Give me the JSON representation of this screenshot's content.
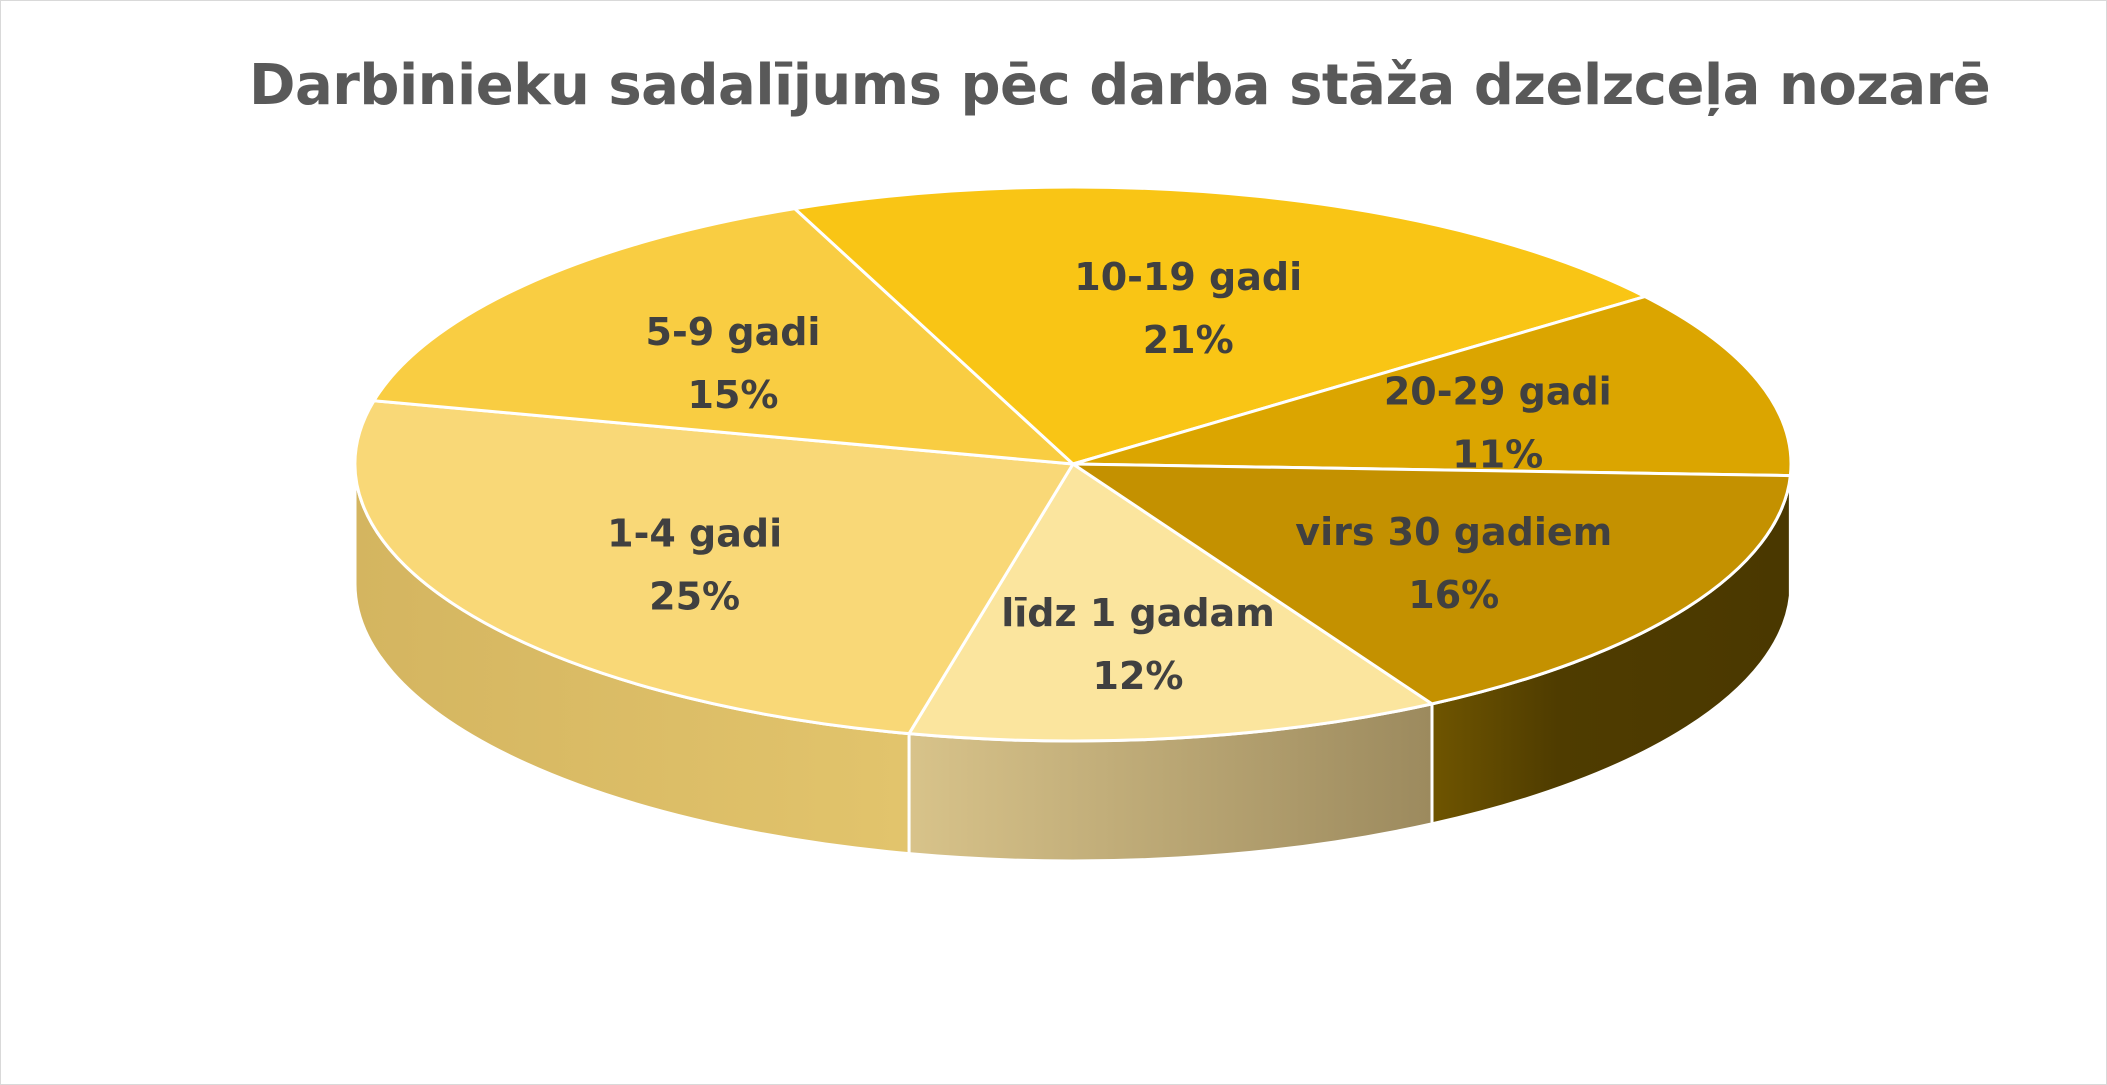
{
  "chart_data": {
    "type": "pie",
    "title": "Darbinieku sadalījums pēc darba stāža dzelzceļa nozarē",
    "categories": [
      "līdz 1 gadam",
      "1-4 gadi",
      "5-9 gadi",
      "10-19 gadi",
      "20-29 gadi",
      "virs 30 gadiem"
    ],
    "values": [
      12,
      25,
      15,
      21,
      11,
      16
    ],
    "value_labels": [
      "12%",
      "25%",
      "15%",
      "21%",
      "11%",
      "16%"
    ],
    "colors": [
      "#fbe59e",
      "#f9d877",
      "#f9cd42",
      "#f9c515",
      "#dba500",
      "#c49100"
    ],
    "side_colors": [
      "#c9b27a",
      "#d9b855",
      "#c9a12a",
      "#a88300",
      "#5a4300",
      "#4f3b00"
    ],
    "legend": "none",
    "style": "3d"
  }
}
